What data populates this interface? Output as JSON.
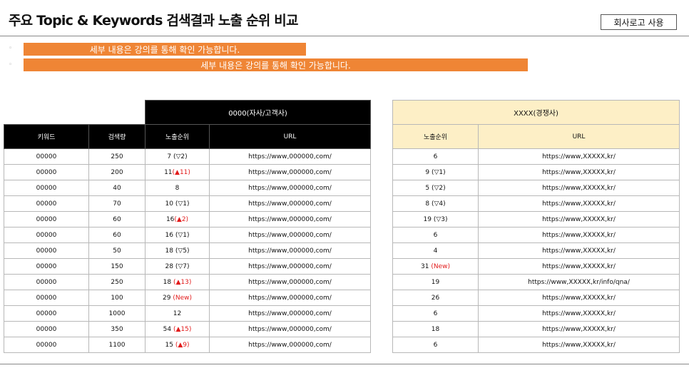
{
  "page": {
    "title": "주요 Topic & Keywords 검색결과 노출 순위 비교",
    "logo_button": "회사로고 사용"
  },
  "banners": [
    "세부 내용은 강의를 통해 확인 가능합니다.",
    "세부 내용은 강의를 통해 확인 가능합니다."
  ],
  "bullet_glyph": "◦",
  "colors": {
    "banner": "#ef8535",
    "header_dark": "#000000",
    "header_cream": "#fdefc6",
    "rank_up": "#e21b1b"
  },
  "left_table": {
    "group_header": "0000(자사/고객사)",
    "columns": [
      "키워드",
      "검색량",
      "노출순위",
      "URL"
    ],
    "rows": [
      {
        "keyword": "00000",
        "volume": "250",
        "rank": "7",
        "rank_note": " (▽2)",
        "rank_note_red": "",
        "url": "https://www,000000,com/"
      },
      {
        "keyword": "00000",
        "volume": "200",
        "rank": "11",
        "rank_note": "",
        "rank_note_red": "(▲11)",
        "url": "https://www,000000,com/"
      },
      {
        "keyword": "00000",
        "volume": "40",
        "rank": "8",
        "rank_note": "",
        "rank_note_red": "",
        "url": "https://www,000000,com/"
      },
      {
        "keyword": "00000",
        "volume": "70",
        "rank": "10",
        "rank_note": " (▽1)",
        "rank_note_red": "",
        "url": "https://www,000000,com/"
      },
      {
        "keyword": "00000",
        "volume": "60",
        "rank": "16",
        "rank_note": "",
        "rank_note_red": "(▲2)",
        "url": "https://www,000000,com/"
      },
      {
        "keyword": "00000",
        "volume": "60",
        "rank": "16",
        "rank_note": "  (▽1)",
        "rank_note_red": "",
        "url": "https://www,000000,com/"
      },
      {
        "keyword": "00000",
        "volume": "50",
        "rank": "18",
        "rank_note": " (▽5)",
        "rank_note_red": "",
        "url": "https://www,000000,com/"
      },
      {
        "keyword": "00000",
        "volume": "150",
        "rank": "28",
        "rank_note": " (▽7)",
        "rank_note_red": "",
        "url": "https://www,000000,com/"
      },
      {
        "keyword": "00000",
        "volume": "250",
        "rank": "18",
        "rank_note": " ",
        "rank_note_red": "(▲13)",
        "url": "https://www,000000,com/"
      },
      {
        "keyword": "00000",
        "volume": "100",
        "rank": "29",
        "rank_note": " ",
        "rank_note_red": "(New)",
        "url": "https://www,000000,com/"
      },
      {
        "keyword": "00000",
        "volume": "1000",
        "rank": "12",
        "rank_note": "",
        "rank_note_red": "",
        "url": "https://www,000000,com/"
      },
      {
        "keyword": "00000",
        "volume": "350",
        "rank": "54",
        "rank_note": " ",
        "rank_note_red": "(▲15)",
        "url": "https://www,000000,com/"
      },
      {
        "keyword": "00000",
        "volume": "1100",
        "rank": "15",
        "rank_note": " ",
        "rank_note_red": "(▲9)",
        "url": "https://www,000000,com/"
      }
    ]
  },
  "right_table": {
    "group_header": "XXXX(경쟁사)",
    "columns": [
      "노출순위",
      "URL"
    ],
    "rows": [
      {
        "rank": "6",
        "rank_note": "",
        "rank_note_red": "",
        "url": "https://www,XXXXX,kr/"
      },
      {
        "rank": "9",
        "rank_note": " (▽1)",
        "rank_note_red": "",
        "url": "https://www,XXXXX,kr/"
      },
      {
        "rank": "5",
        "rank_note": " (▽2)",
        "rank_note_red": "",
        "url": "https://www,XXXXX,kr/"
      },
      {
        "rank": "8",
        "rank_note": " (▽4)",
        "rank_note_red": "",
        "url": "https://www,XXXXX,kr/"
      },
      {
        "rank": "19",
        "rank_note": " (▽3)",
        "rank_note_red": "",
        "url": "https://www,XXXXX,kr/"
      },
      {
        "rank": "6",
        "rank_note": "",
        "rank_note_red": "",
        "url": "https://www,XXXXX,kr/"
      },
      {
        "rank": "4",
        "rank_note": "",
        "rank_note_red": "",
        "url": "https://www,XXXXX,kr/"
      },
      {
        "rank": "31",
        "rank_note": " ",
        "rank_note_red": "(New)",
        "url": "https://www,XXXXX,kr/"
      },
      {
        "rank": "19",
        "rank_note": "",
        "rank_note_red": "",
        "url": "https://www,XXXXX,kr/info/qna/"
      },
      {
        "rank": "26",
        "rank_note": "",
        "rank_note_red": "",
        "url": "https://www,XXXXX,kr/"
      },
      {
        "rank": "6",
        "rank_note": "",
        "rank_note_red": "",
        "url": "https://www,XXXXX,kr/"
      },
      {
        "rank": "18",
        "rank_note": "",
        "rank_note_red": "",
        "url": "https://www,XXXXX,kr/"
      },
      {
        "rank": "6",
        "rank_note": "",
        "rank_note_red": "",
        "url": "https://www,XXXXX,kr/"
      }
    ]
  }
}
